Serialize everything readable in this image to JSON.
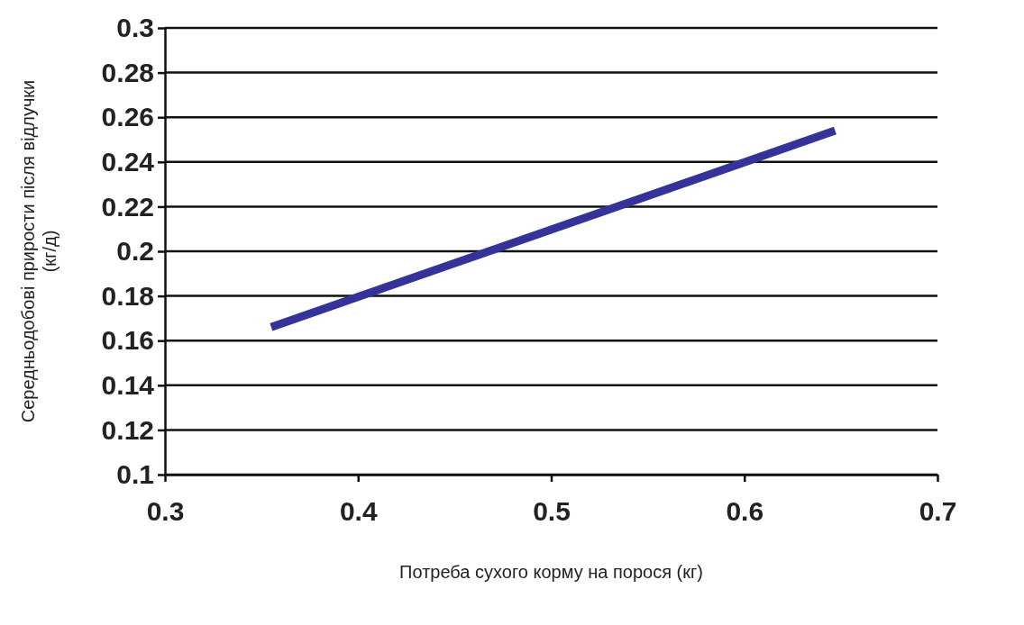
{
  "chart_data": {
    "type": "line",
    "xlabel": "Потреба сухого корму на порося (кг)",
    "ylabel": "Середньодобові прирости після відлучки\n(кг/д)",
    "x": [
      0.355,
      0.647
    ],
    "series": [
      {
        "color": "#33339a",
        "values": [
          0.166,
          0.254
        ]
      }
    ],
    "xlim": [
      0.3,
      0.7
    ],
    "xticks": [
      0.3,
      0.4,
      0.5,
      0.6,
      0.7
    ],
    "ylim": [
      0.1,
      0.3
    ],
    "yticks": [
      0.1,
      0.12,
      0.14,
      0.16,
      0.18,
      0.2,
      0.22,
      0.24,
      0.26,
      0.28,
      0.3
    ],
    "grid": "y",
    "marker": "none",
    "line_style": "solid"
  }
}
